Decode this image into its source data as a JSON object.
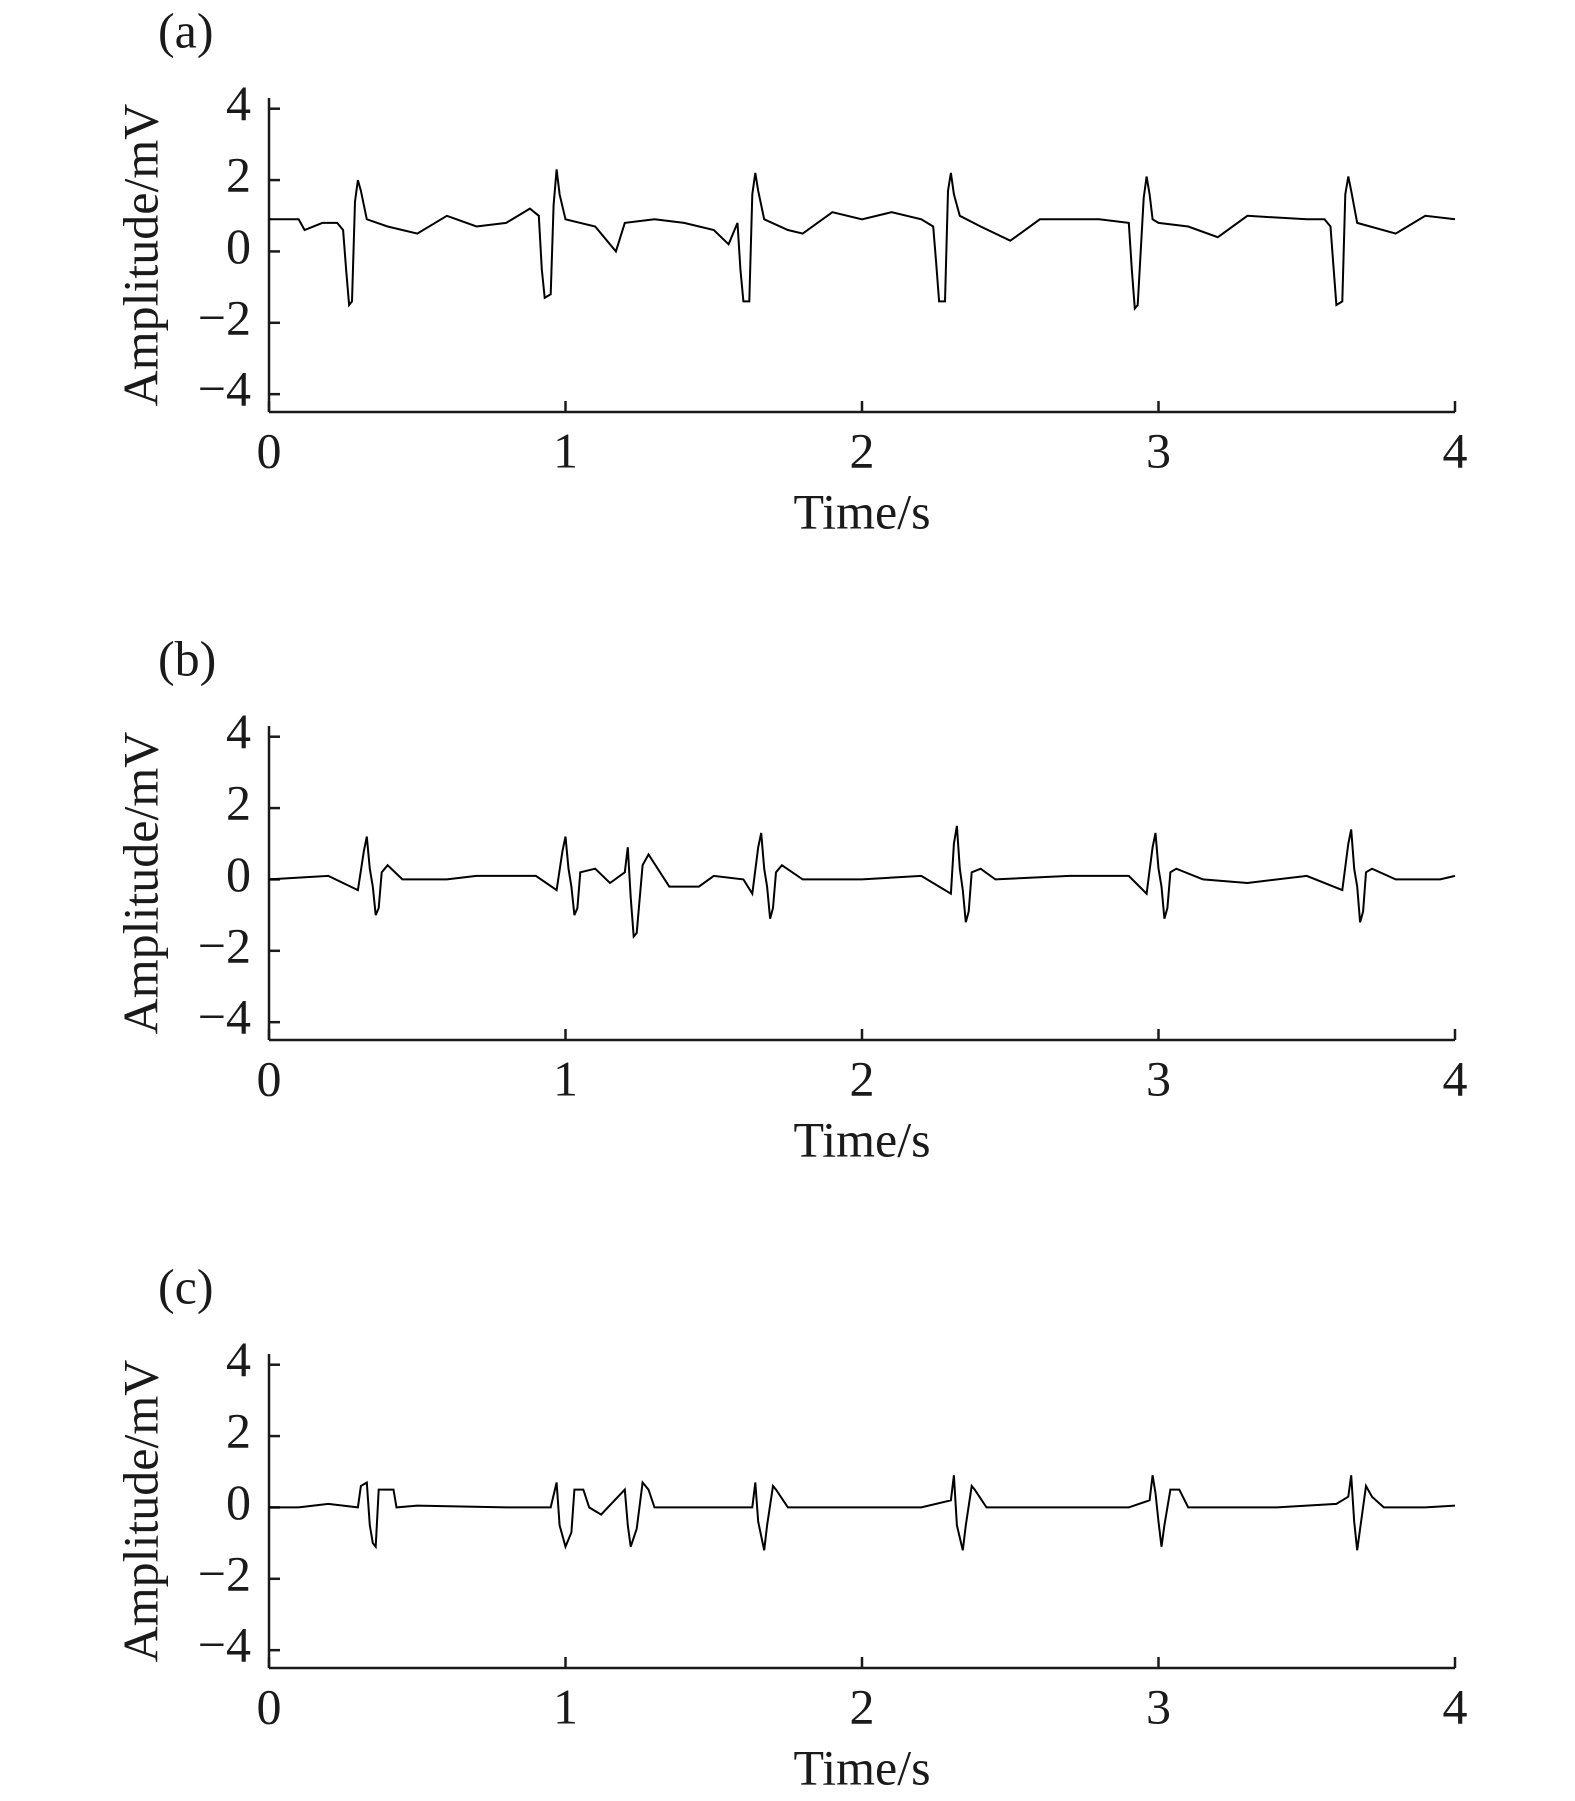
{
  "chart_data": [
    {
      "type": "line",
      "title": "(a)",
      "ylabel": "Amplitude/mV",
      "xlabel": "Time/s",
      "xlim": [
        0,
        4
      ],
      "ylim": [
        -4.5,
        4.3
      ],
      "xticks": [
        0,
        1,
        2,
        3,
        4
      ],
      "yticks": [
        {
          "value": -4,
          "label": "−4"
        },
        {
          "value": -2,
          "label": "−2"
        },
        0,
        2,
        4
      ],
      "series": [
        {
          "color": "#000000",
          "x": [
            0,
            0.1,
            0.12,
            0.18,
            0.23,
            0.25,
            0.26,
            0.27,
            0.28,
            0.29,
            0.3,
            0.31,
            0.33,
            0.4,
            0.5,
            0.6,
            0.7,
            0.8,
            0.88,
            0.91,
            0.92,
            0.93,
            0.95,
            0.96,
            0.97,
            0.98,
            1.0,
            1.1,
            1.17,
            1.2,
            1.3,
            1.4,
            1.5,
            1.55,
            1.58,
            1.59,
            1.6,
            1.62,
            1.63,
            1.64,
            1.65,
            1.67,
            1.75,
            1.8,
            1.9,
            2.0,
            2.1,
            2.2,
            2.24,
            2.25,
            2.26,
            2.28,
            2.29,
            2.3,
            2.31,
            2.33,
            2.4,
            2.5,
            2.6,
            2.8,
            2.9,
            2.91,
            2.92,
            2.93,
            2.95,
            2.96,
            2.97,
            2.98,
            3.0,
            3.1,
            3.2,
            3.3,
            3.5,
            3.56,
            3.58,
            3.59,
            3.6,
            3.62,
            3.63,
            3.64,
            3.65,
            3.67,
            3.8,
            3.9,
            4.0
          ],
          "values": [
            0.9,
            0.9,
            0.6,
            0.8,
            0.8,
            0.6,
            -0.5,
            -1.5,
            -1.4,
            1.4,
            2.0,
            1.7,
            0.9,
            0.7,
            0.5,
            1.0,
            0.7,
            0.8,
            1.2,
            1.0,
            -0.5,
            -1.3,
            -1.2,
            1.3,
            2.3,
            1.6,
            0.9,
            0.7,
            0.0,
            0.8,
            0.9,
            0.8,
            0.6,
            0.2,
            0.8,
            -0.5,
            -1.4,
            -1.4,
            1.6,
            2.2,
            1.7,
            0.9,
            0.6,
            0.5,
            1.1,
            0.9,
            1.1,
            0.9,
            0.7,
            -0.3,
            -1.4,
            -1.4,
            1.7,
            2.2,
            1.6,
            1.0,
            0.7,
            0.3,
            0.9,
            0.9,
            0.8,
            -0.5,
            -1.6,
            -1.5,
            1.5,
            2.1,
            1.6,
            0.9,
            0.8,
            0.7,
            0.4,
            1.0,
            0.9,
            0.9,
            0.7,
            -0.4,
            -1.5,
            -1.4,
            1.6,
            2.1,
            1.7,
            0.8,
            0.5,
            1.0,
            0.9
          ]
        }
      ]
    },
    {
      "type": "line",
      "title": "(b)",
      "ylabel": "Amplitude/mV",
      "xlabel": "Time/s",
      "xlim": [
        0,
        4
      ],
      "ylim": [
        -4.5,
        4.3
      ],
      "xticks": [
        0,
        1,
        2,
        3,
        4
      ],
      "yticks": [
        {
          "value": -4,
          "label": "−4"
        },
        {
          "value": -2,
          "label": "−2"
        },
        0,
        2,
        4
      ],
      "series": [
        {
          "color": "#000000",
          "x": [
            0,
            0.2,
            0.3,
            0.32,
            0.33,
            0.34,
            0.35,
            0.36,
            0.37,
            0.38,
            0.4,
            0.45,
            0.6,
            0.7,
            0.9,
            0.97,
            0.99,
            1.0,
            1.01,
            1.02,
            1.03,
            1.04,
            1.05,
            1.1,
            1.15,
            1.2,
            1.21,
            1.22,
            1.23,
            1.24,
            1.26,
            1.28,
            1.35,
            1.45,
            1.5,
            1.6,
            1.63,
            1.65,
            1.66,
            1.67,
            1.68,
            1.69,
            1.7,
            1.71,
            1.73,
            1.8,
            2.0,
            2.2,
            2.3,
            2.31,
            2.32,
            2.33,
            2.34,
            2.35,
            2.36,
            2.37,
            2.4,
            2.45,
            2.7,
            2.9,
            2.96,
            2.98,
            2.99,
            3.0,
            3.01,
            3.02,
            3.03,
            3.04,
            3.06,
            3.15,
            3.3,
            3.5,
            3.62,
            3.64,
            3.65,
            3.66,
            3.67,
            3.68,
            3.69,
            3.7,
            3.72,
            3.8,
            3.95,
            4.0
          ],
          "values": [
            0,
            0.1,
            -0.3,
            0.8,
            1.2,
            0.3,
            -0.2,
            -1.0,
            -0.8,
            0.2,
            0.4,
            0,
            0,
            0.1,
            0.1,
            -0.3,
            0.8,
            1.2,
            0.3,
            -0.2,
            -1.0,
            -0.8,
            0.2,
            0.3,
            -0.1,
            0.2,
            0.9,
            -0.5,
            -1.6,
            -1.5,
            0.4,
            0.7,
            -0.2,
            -0.2,
            0.1,
            0.0,
            -0.4,
            0.9,
            1.3,
            0.3,
            -0.2,
            -1.1,
            -0.8,
            0.2,
            0.4,
            0,
            0,
            0.1,
            -0.4,
            1.0,
            1.5,
            0.3,
            -0.3,
            -1.2,
            -0.9,
            0.2,
            0.3,
            0,
            0.1,
            0.1,
            -0.4,
            0.9,
            1.3,
            0.3,
            -0.2,
            -1.1,
            -0.8,
            0.2,
            0.3,
            0,
            -0.1,
            0.1,
            -0.3,
            1.0,
            1.4,
            0.3,
            -0.2,
            -1.2,
            -0.9,
            0.2,
            0.3,
            0,
            0,
            0.1
          ]
        }
      ]
    },
    {
      "type": "line",
      "title": "(c)",
      "ylabel": "Amplitude/mV",
      "xlabel": "Time/s",
      "xlim": [
        0,
        4
      ],
      "ylim": [
        -4.5,
        4.3
      ],
      "xticks": [
        0,
        1,
        2,
        3,
        4
      ],
      "yticks": [
        {
          "value": -4,
          "label": "−4"
        },
        {
          "value": -2,
          "label": "−2"
        },
        0,
        2,
        4
      ],
      "series": [
        {
          "color": "#000000",
          "x": [
            0,
            0.1,
            0.2,
            0.3,
            0.31,
            0.33,
            0.34,
            0.35,
            0.36,
            0.37,
            0.42,
            0.43,
            0.5,
            0.8,
            0.95,
            0.97,
            0.98,
            1.0,
            1.02,
            1.03,
            1.06,
            1.08,
            1.12,
            1.2,
            1.21,
            1.22,
            1.24,
            1.26,
            1.28,
            1.3,
            1.5,
            1.63,
            1.64,
            1.65,
            1.67,
            1.68,
            1.7,
            1.71,
            1.75,
            2.0,
            2.2,
            2.3,
            2.31,
            2.32,
            2.34,
            2.35,
            2.37,
            2.38,
            2.42,
            2.6,
            2.9,
            2.97,
            2.98,
            2.99,
            3.0,
            3.01,
            3.02,
            3.04,
            3.07,
            3.1,
            3.4,
            3.6,
            3.64,
            3.65,
            3.66,
            3.67,
            3.68,
            3.7,
            3.72,
            3.76,
            3.9,
            4.0
          ],
          "values": [
            0,
            0,
            0.1,
            0,
            0.6,
            0.7,
            -0.5,
            -1.0,
            -1.1,
            0.5,
            0.5,
            0,
            0.05,
            0,
            0,
            0.7,
            -0.5,
            -1.1,
            -0.7,
            0.5,
            0.5,
            0,
            -0.2,
            0.5,
            -0.5,
            -1.1,
            -0.6,
            0.7,
            0.5,
            0,
            0,
            0,
            0.7,
            -0.4,
            -1.2,
            -0.5,
            0.6,
            0.5,
            0,
            0,
            0,
            0.2,
            0.9,
            -0.5,
            -1.2,
            -0.5,
            0.6,
            0.5,
            0,
            0,
            0,
            0.2,
            0.9,
            0.4,
            -0.4,
            -1.1,
            -0.5,
            0.5,
            0.5,
            0,
            0,
            0.1,
            0.3,
            0.9,
            -0.4,
            -1.2,
            -0.6,
            0.6,
            0.3,
            0,
            0,
            0.05
          ]
        }
      ]
    }
  ]
}
